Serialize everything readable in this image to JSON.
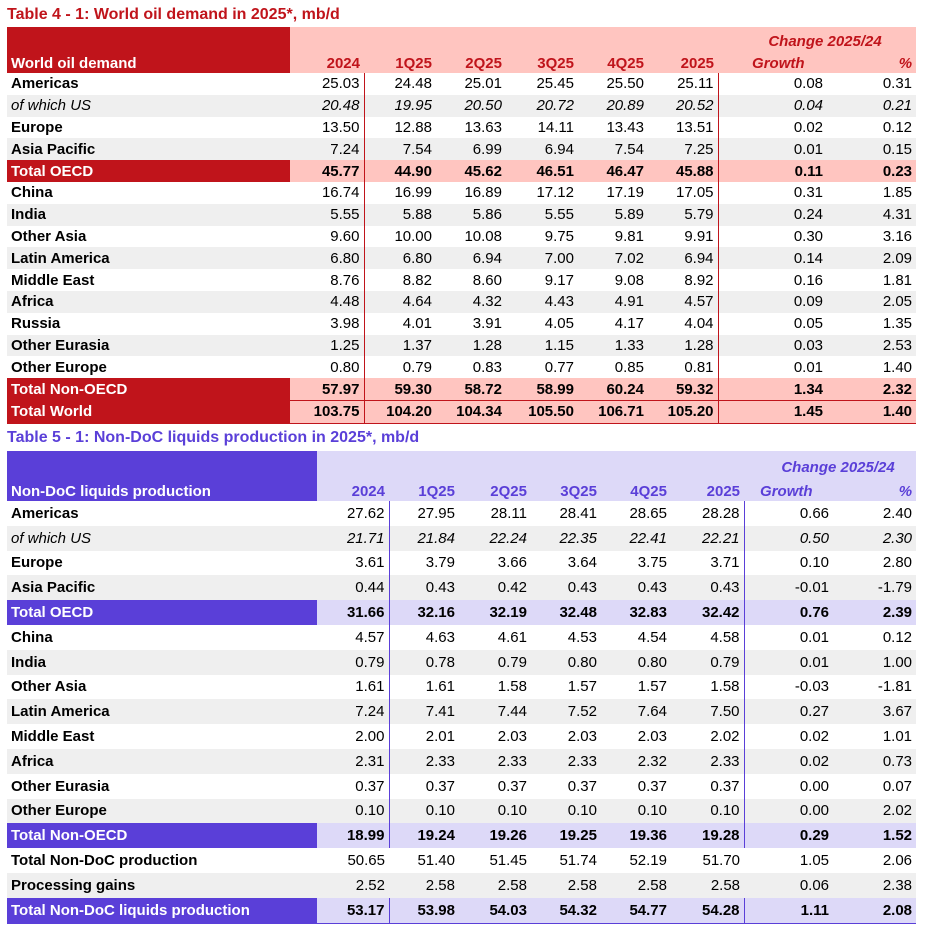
{
  "table4": {
    "title": "Table 4 - 1: World oil demand in 2025*, mb/d",
    "header_label": "World oil demand",
    "change_header": "Change 2025/24",
    "columns": [
      "2024",
      "1Q25",
      "2Q25",
      "3Q25",
      "4Q25",
      "2025",
      "Growth",
      "%"
    ],
    "rows": [
      {
        "label": "Americas",
        "values": [
          "25.03",
          "24.48",
          "25.01",
          "25.45",
          "25.50",
          "25.11",
          "0.08",
          "0.31"
        ]
      },
      {
        "label": "of which US",
        "values": [
          "20.48",
          "19.95",
          "20.50",
          "20.72",
          "20.89",
          "20.52",
          "0.04",
          "0.21"
        ]
      },
      {
        "label": "Europe",
        "values": [
          "13.50",
          "12.88",
          "13.63",
          "14.11",
          "13.43",
          "13.51",
          "0.02",
          "0.12"
        ]
      },
      {
        "label": "Asia Pacific",
        "values": [
          "7.24",
          "7.54",
          "6.99",
          "6.94",
          "7.54",
          "7.25",
          "0.01",
          "0.15"
        ]
      },
      {
        "label": "Total OECD",
        "values": [
          "45.77",
          "44.90",
          "45.62",
          "46.51",
          "46.47",
          "45.88",
          "0.11",
          "0.23"
        ]
      },
      {
        "label": "China",
        "values": [
          "16.74",
          "16.99",
          "16.89",
          "17.12",
          "17.19",
          "17.05",
          "0.31",
          "1.85"
        ]
      },
      {
        "label": "India",
        "values": [
          "5.55",
          "5.88",
          "5.86",
          "5.55",
          "5.89",
          "5.79",
          "0.24",
          "4.31"
        ]
      },
      {
        "label": "Other Asia",
        "values": [
          "9.60",
          "10.00",
          "10.08",
          "9.75",
          "9.81",
          "9.91",
          "0.30",
          "3.16"
        ]
      },
      {
        "label": "Latin America",
        "values": [
          "6.80",
          "6.80",
          "6.94",
          "7.00",
          "7.02",
          "6.94",
          "0.14",
          "2.09"
        ]
      },
      {
        "label": "Middle East",
        "values": [
          "8.76",
          "8.82",
          "8.60",
          "9.17",
          "9.08",
          "8.92",
          "0.16",
          "1.81"
        ]
      },
      {
        "label": "Africa",
        "values": [
          "4.48",
          "4.64",
          "4.32",
          "4.43",
          "4.91",
          "4.57",
          "0.09",
          "2.05"
        ]
      },
      {
        "label": "Russia",
        "values": [
          "3.98",
          "4.01",
          "3.91",
          "4.05",
          "4.17",
          "4.04",
          "0.05",
          "1.35"
        ]
      },
      {
        "label": "Other Eurasia",
        "values": [
          "1.25",
          "1.37",
          "1.28",
          "1.15",
          "1.33",
          "1.28",
          "0.03",
          "2.53"
        ]
      },
      {
        "label": "Other Europe",
        "values": [
          "0.80",
          "0.79",
          "0.83",
          "0.77",
          "0.85",
          "0.81",
          "0.01",
          "1.40"
        ]
      },
      {
        "label": "Total Non-OECD",
        "values": [
          "57.97",
          "59.30",
          "58.72",
          "58.99",
          "60.24",
          "59.32",
          "1.34",
          "2.32"
        ]
      },
      {
        "label": "Total World",
        "values": [
          "103.75",
          "104.20",
          "104.34",
          "105.50",
          "106.71",
          "105.20",
          "1.45",
          "1.40"
        ]
      }
    ]
  },
  "table5": {
    "title": "Table 5 - 1: Non-DoC liquids production in 2025*, mb/d",
    "header_label": "Non-DoC liquids production",
    "change_header": "Change 2025/24",
    "columns": [
      "2024",
      "1Q25",
      "2Q25",
      "3Q25",
      "4Q25",
      "2025",
      "Growth",
      "%"
    ],
    "rows": [
      {
        "label": "Americas",
        "values": [
          "27.62",
          "27.95",
          "28.11",
          "28.41",
          "28.65",
          "28.28",
          "0.66",
          "2.40"
        ]
      },
      {
        "label": "of which US",
        "values": [
          "21.71",
          "21.84",
          "22.24",
          "22.35",
          "22.41",
          "22.21",
          "0.50",
          "2.30"
        ]
      },
      {
        "label": "Europe",
        "values": [
          "3.61",
          "3.79",
          "3.66",
          "3.64",
          "3.75",
          "3.71",
          "0.10",
          "2.80"
        ]
      },
      {
        "label": "Asia Pacific",
        "values": [
          "0.44",
          "0.43",
          "0.42",
          "0.43",
          "0.43",
          "0.43",
          "-0.01",
          "-1.79"
        ]
      },
      {
        "label": "Total OECD",
        "values": [
          "31.66",
          "32.16",
          "32.19",
          "32.48",
          "32.83",
          "32.42",
          "0.76",
          "2.39"
        ]
      },
      {
        "label": "China",
        "values": [
          "4.57",
          "4.63",
          "4.61",
          "4.53",
          "4.54",
          "4.58",
          "0.01",
          "0.12"
        ]
      },
      {
        "label": "India",
        "values": [
          "0.79",
          "0.78",
          "0.79",
          "0.80",
          "0.80",
          "0.79",
          "0.01",
          "1.00"
        ]
      },
      {
        "label": "Other Asia",
        "values": [
          "1.61",
          "1.61",
          "1.58",
          "1.57",
          "1.57",
          "1.58",
          "-0.03",
          "-1.81"
        ]
      },
      {
        "label": "Latin America",
        "values": [
          "7.24",
          "7.41",
          "7.44",
          "7.52",
          "7.64",
          "7.50",
          "0.27",
          "3.67"
        ]
      },
      {
        "label": "Middle East",
        "values": [
          "2.00",
          "2.01",
          "2.03",
          "2.03",
          "2.03",
          "2.02",
          "0.02",
          "1.01"
        ]
      },
      {
        "label": "Africa",
        "values": [
          "2.31",
          "2.33",
          "2.33",
          "2.33",
          "2.32",
          "2.33",
          "0.02",
          "0.73"
        ]
      },
      {
        "label": "Other Eurasia",
        "values": [
          "0.37",
          "0.37",
          "0.37",
          "0.37",
          "0.37",
          "0.37",
          "0.00",
          "0.07"
        ]
      },
      {
        "label": "Other Europe",
        "values": [
          "0.10",
          "0.10",
          "0.10",
          "0.10",
          "0.10",
          "0.10",
          "0.00",
          "2.02"
        ]
      },
      {
        "label": "Total Non-OECD",
        "values": [
          "18.99",
          "19.24",
          "19.26",
          "19.25",
          "19.36",
          "19.28",
          "0.29",
          "1.52"
        ]
      },
      {
        "label": "Total Non-DoC production",
        "values": [
          "50.65",
          "51.40",
          "51.45",
          "51.74",
          "52.19",
          "51.70",
          "1.05",
          "2.06"
        ]
      },
      {
        "label": "Processing gains",
        "values": [
          "2.52",
          "2.58",
          "2.58",
          "2.58",
          "2.58",
          "2.58",
          "0.06",
          "2.38"
        ]
      },
      {
        "label": "Total Non-DoC liquids production",
        "values": [
          "53.17",
          "53.98",
          "54.03",
          "54.32",
          "54.77",
          "54.28",
          "1.11",
          "2.08"
        ]
      }
    ]
  }
}
